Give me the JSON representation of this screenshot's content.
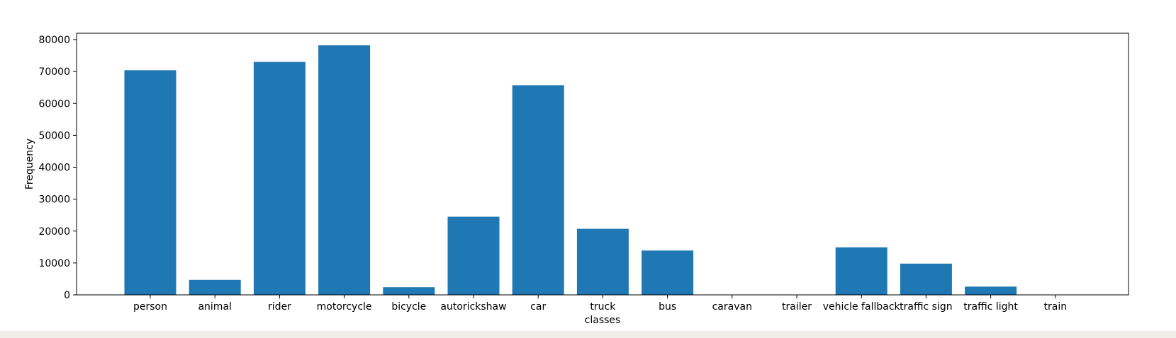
{
  "chart_data": {
    "type": "bar",
    "title": "",
    "xlabel": "classes",
    "ylabel": "Frequency",
    "categories": [
      "person",
      "animal",
      "rider",
      "motorcycle",
      "bicycle",
      "autorickshaw",
      "car",
      "truck",
      "bus",
      "caravan",
      "trailer",
      "vehicle fallback",
      "traffic sign",
      "traffic light",
      "train"
    ],
    "values": [
      70400,
      4700,
      73000,
      78200,
      2400,
      24500,
      65700,
      20700,
      13900,
      0,
      0,
      14900,
      9800,
      2600,
      0
    ],
    "ylim": [
      0,
      82000
    ],
    "yticks": [
      0,
      10000,
      20000,
      30000,
      40000,
      50000,
      60000,
      70000,
      80000
    ],
    "grid": false,
    "legend": "none",
    "bar_color": "#1f77b4"
  }
}
